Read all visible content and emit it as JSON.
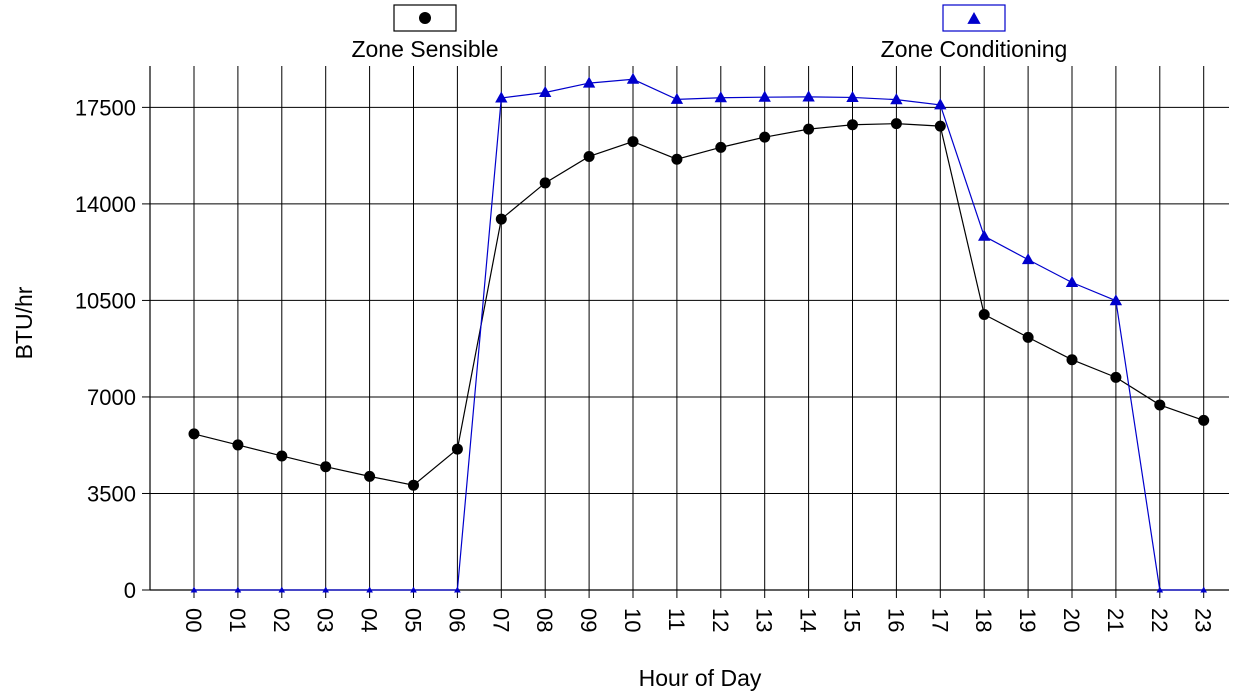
{
  "chart_data": {
    "type": "line",
    "title": "",
    "xlabel": "Hour of Day",
    "ylabel": "BTU/hr",
    "ylim": [
      0,
      19000
    ],
    "yticks": [
      0,
      3500,
      7000,
      10500,
      14000,
      17500
    ],
    "ytick_labels": [
      "0",
      "3500",
      "7000",
      "10500",
      "14000",
      "17500"
    ],
    "grid": true,
    "legend_position": "top",
    "categories": [
      "00",
      "01",
      "02",
      "03",
      "04",
      "05",
      "06",
      "07",
      "08",
      "09",
      "10",
      "11",
      "12",
      "13",
      "14",
      "15",
      "16",
      "17",
      "18",
      "19",
      "20",
      "21",
      "22",
      "23"
    ],
    "series": [
      {
        "name": "Zone Sensible",
        "color": "#000000",
        "marker": "circle",
        "values": [
          5660,
          5260,
          4860,
          4470,
          4120,
          3800,
          5110,
          13450,
          14760,
          15720,
          16260,
          15620,
          16050,
          16420,
          16710,
          16870,
          16910,
          16820,
          9990,
          9160,
          8350,
          7710,
          6710,
          6150
        ]
      },
      {
        "name": "Zone Conditioning",
        "color": "#0000cc",
        "marker": "triangle",
        "values": [
          0,
          0,
          0,
          0,
          0,
          0,
          0,
          17840,
          18040,
          18380,
          18520,
          17790,
          17850,
          17870,
          17880,
          17860,
          17780,
          17590,
          12830,
          11980,
          11150,
          10490,
          0,
          0
        ]
      }
    ]
  }
}
